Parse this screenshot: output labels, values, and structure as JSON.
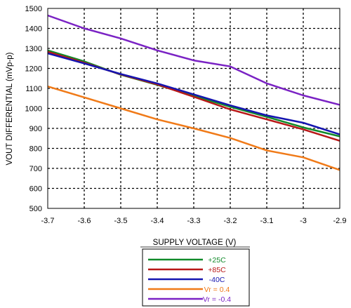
{
  "chart_data": {
    "type": "line",
    "title": "",
    "xlabel": "SUPPLY VOLTAGE (V)",
    "ylabel": "VOUT DIFFERENTIAL (mVp-p)",
    "xlim": [
      -3.7,
      -2.9
    ],
    "ylim": [
      500,
      1500
    ],
    "x_ticks": [
      "-3.7",
      "-3.6",
      "-3.5",
      "-3.4",
      "-3.3",
      "-3.2",
      "-3.1",
      "-3",
      "-2.9"
    ],
    "y_ticks": [
      "500",
      "600",
      "700",
      "800",
      "900",
      "1000",
      "1100",
      "1200",
      "1300",
      "1400",
      "1500"
    ],
    "grid": true,
    "legend_position": "bottom-center",
    "x": [
      -3.7,
      -3.6,
      -3.5,
      -3.4,
      -3.3,
      -3.2,
      -3.1,
      -3.0,
      -2.9
    ],
    "series": [
      {
        "name": "+25C",
        "color": "#118a2a",
        "values": [
          1290,
          1235,
          1168,
          1118,
          1062,
          1008,
          958,
          905,
          860
        ]
      },
      {
        "name": "+85C",
        "color": "#b81717",
        "values": [
          1283,
          1228,
          1170,
          1120,
          1058,
          995,
          945,
          895,
          838
        ]
      },
      {
        "name": "-40C",
        "color": "#1515b0",
        "values": [
          1275,
          1225,
          1172,
          1125,
          1070,
          1015,
          965,
          928,
          870
        ]
      },
      {
        "name": "Vr = 0.4",
        "color": "#f07a18",
        "values": [
          1110,
          1055,
          1000,
          945,
          900,
          852,
          790,
          755,
          692
        ]
      },
      {
        "name": "Vr = -0.4",
        "color": "#7a22c4",
        "values": [
          1465,
          1400,
          1350,
          1290,
          1240,
          1210,
          1125,
          1065,
          1018
        ]
      }
    ]
  }
}
